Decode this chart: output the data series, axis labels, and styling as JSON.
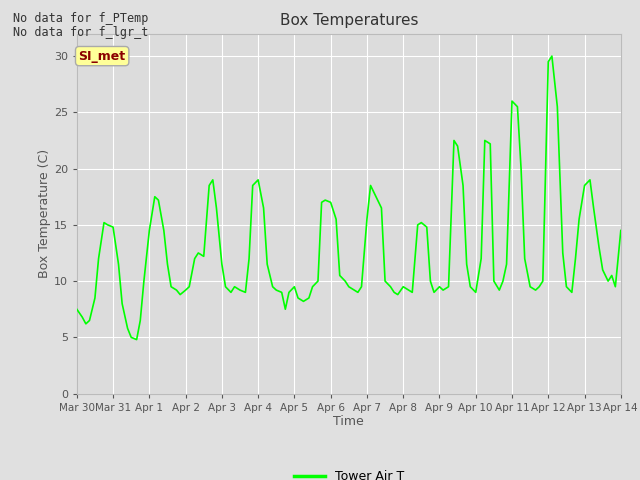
{
  "title": "Box Temperatures",
  "xlabel": "Time",
  "ylabel": "Box Temperature (C)",
  "line_color": "#00FF00",
  "line_width": 1.2,
  "fig_bg_color": "#E0E0E0",
  "plot_bg_color": "#DCDCDC",
  "ylim": [
    0,
    32
  ],
  "yticks": [
    0,
    5,
    10,
    15,
    20,
    25,
    30
  ],
  "no_data_text1": "No data for f_PTemp",
  "no_data_text2": "No data for f_lgr_t",
  "legend_label": "Tower Air T",
  "tab_label": "SI_met",
  "tab_bg": "#FFFF99",
  "tab_border": "#AAAAAA",
  "tab_text_color": "#8B0000",
  "xtick_labels": [
    "Mar 30",
    "Mar 31",
    "Apr 1",
    "Apr 2",
    "Apr 3",
    "Apr 4",
    "Apr 5",
    "Apr 6",
    "Apr 7",
    "Apr 8",
    "Apr 9",
    "Apr 10",
    "Apr 11",
    "Apr 12",
    "Apr 13",
    "Apr 14"
  ],
  "x_vals": [
    0.0,
    0.15,
    0.25,
    0.35,
    0.5,
    0.6,
    0.75,
    0.85,
    1.0,
    1.15,
    1.25,
    1.4,
    1.5,
    1.65,
    1.75,
    1.85,
    2.0,
    2.15,
    2.25,
    2.4,
    2.5,
    2.6,
    2.75,
    2.85,
    3.0,
    3.1,
    3.25,
    3.35,
    3.5,
    3.65,
    3.75,
    3.85,
    4.0,
    4.1,
    4.25,
    4.35,
    4.5,
    4.65,
    4.75,
    4.85,
    5.0,
    5.15,
    5.25,
    5.4,
    5.5,
    5.65,
    5.75,
    5.85,
    6.0,
    6.1,
    6.25,
    6.4,
    6.5,
    6.65,
    6.75,
    6.85,
    7.0,
    7.15,
    7.25,
    7.4,
    7.5,
    7.65,
    7.75,
    7.85,
    8.0,
    8.1,
    8.25,
    8.4,
    8.5,
    8.65,
    8.75,
    8.85,
    9.0,
    9.15,
    9.25,
    9.4,
    9.5,
    9.65,
    9.75,
    9.85,
    10.0,
    10.1,
    10.25,
    10.4,
    10.5,
    10.65,
    10.75,
    10.85,
    11.0,
    11.15,
    11.25,
    11.4,
    11.5,
    11.65,
    11.75,
    11.85,
    12.0,
    12.15,
    12.25,
    12.35,
    12.5,
    12.65,
    12.75,
    12.85,
    13.0,
    13.1,
    13.25,
    13.4,
    13.5,
    13.65,
    13.75,
    13.85,
    14.0,
    14.15,
    14.25,
    14.4,
    14.5,
    14.65,
    14.75,
    14.85,
    15.0
  ],
  "y_vals": [
    7.5,
    6.8,
    6.2,
    6.5,
    8.5,
    12.0,
    15.2,
    15.0,
    14.8,
    11.5,
    8.0,
    5.8,
    5.0,
    4.8,
    6.5,
    10.0,
    14.5,
    17.5,
    17.2,
    14.5,
    11.5,
    9.5,
    9.2,
    8.8,
    9.2,
    9.5,
    12.0,
    12.5,
    12.2,
    18.5,
    19.0,
    16.5,
    11.5,
    9.5,
    9.0,
    9.5,
    9.2,
    9.0,
    12.0,
    18.5,
    19.0,
    16.5,
    11.5,
    9.5,
    9.2,
    9.0,
    7.5,
    9.0,
    9.5,
    8.5,
    8.2,
    8.5,
    9.5,
    10.0,
    17.0,
    17.2,
    17.0,
    15.5,
    10.5,
    10.0,
    9.5,
    9.2,
    9.0,
    9.5,
    15.5,
    18.5,
    17.5,
    16.5,
    10.0,
    9.5,
    9.0,
    8.8,
    9.5,
    9.2,
    9.0,
    15.0,
    15.2,
    14.8,
    10.0,
    9.0,
    9.5,
    9.2,
    9.5,
    22.5,
    22.0,
    18.5,
    11.5,
    9.5,
    9.0,
    12.0,
    22.5,
    22.2,
    10.0,
    9.2,
    10.0,
    11.5,
    26.0,
    25.5,
    20.0,
    12.0,
    9.5,
    9.2,
    9.5,
    10.0,
    29.5,
    30.0,
    25.5,
    12.5,
    9.5,
    9.0,
    12.0,
    15.5,
    18.5,
    19.0,
    16.5,
    13.0,
    11.0,
    10.0,
    10.5,
    9.5,
    14.5
  ]
}
